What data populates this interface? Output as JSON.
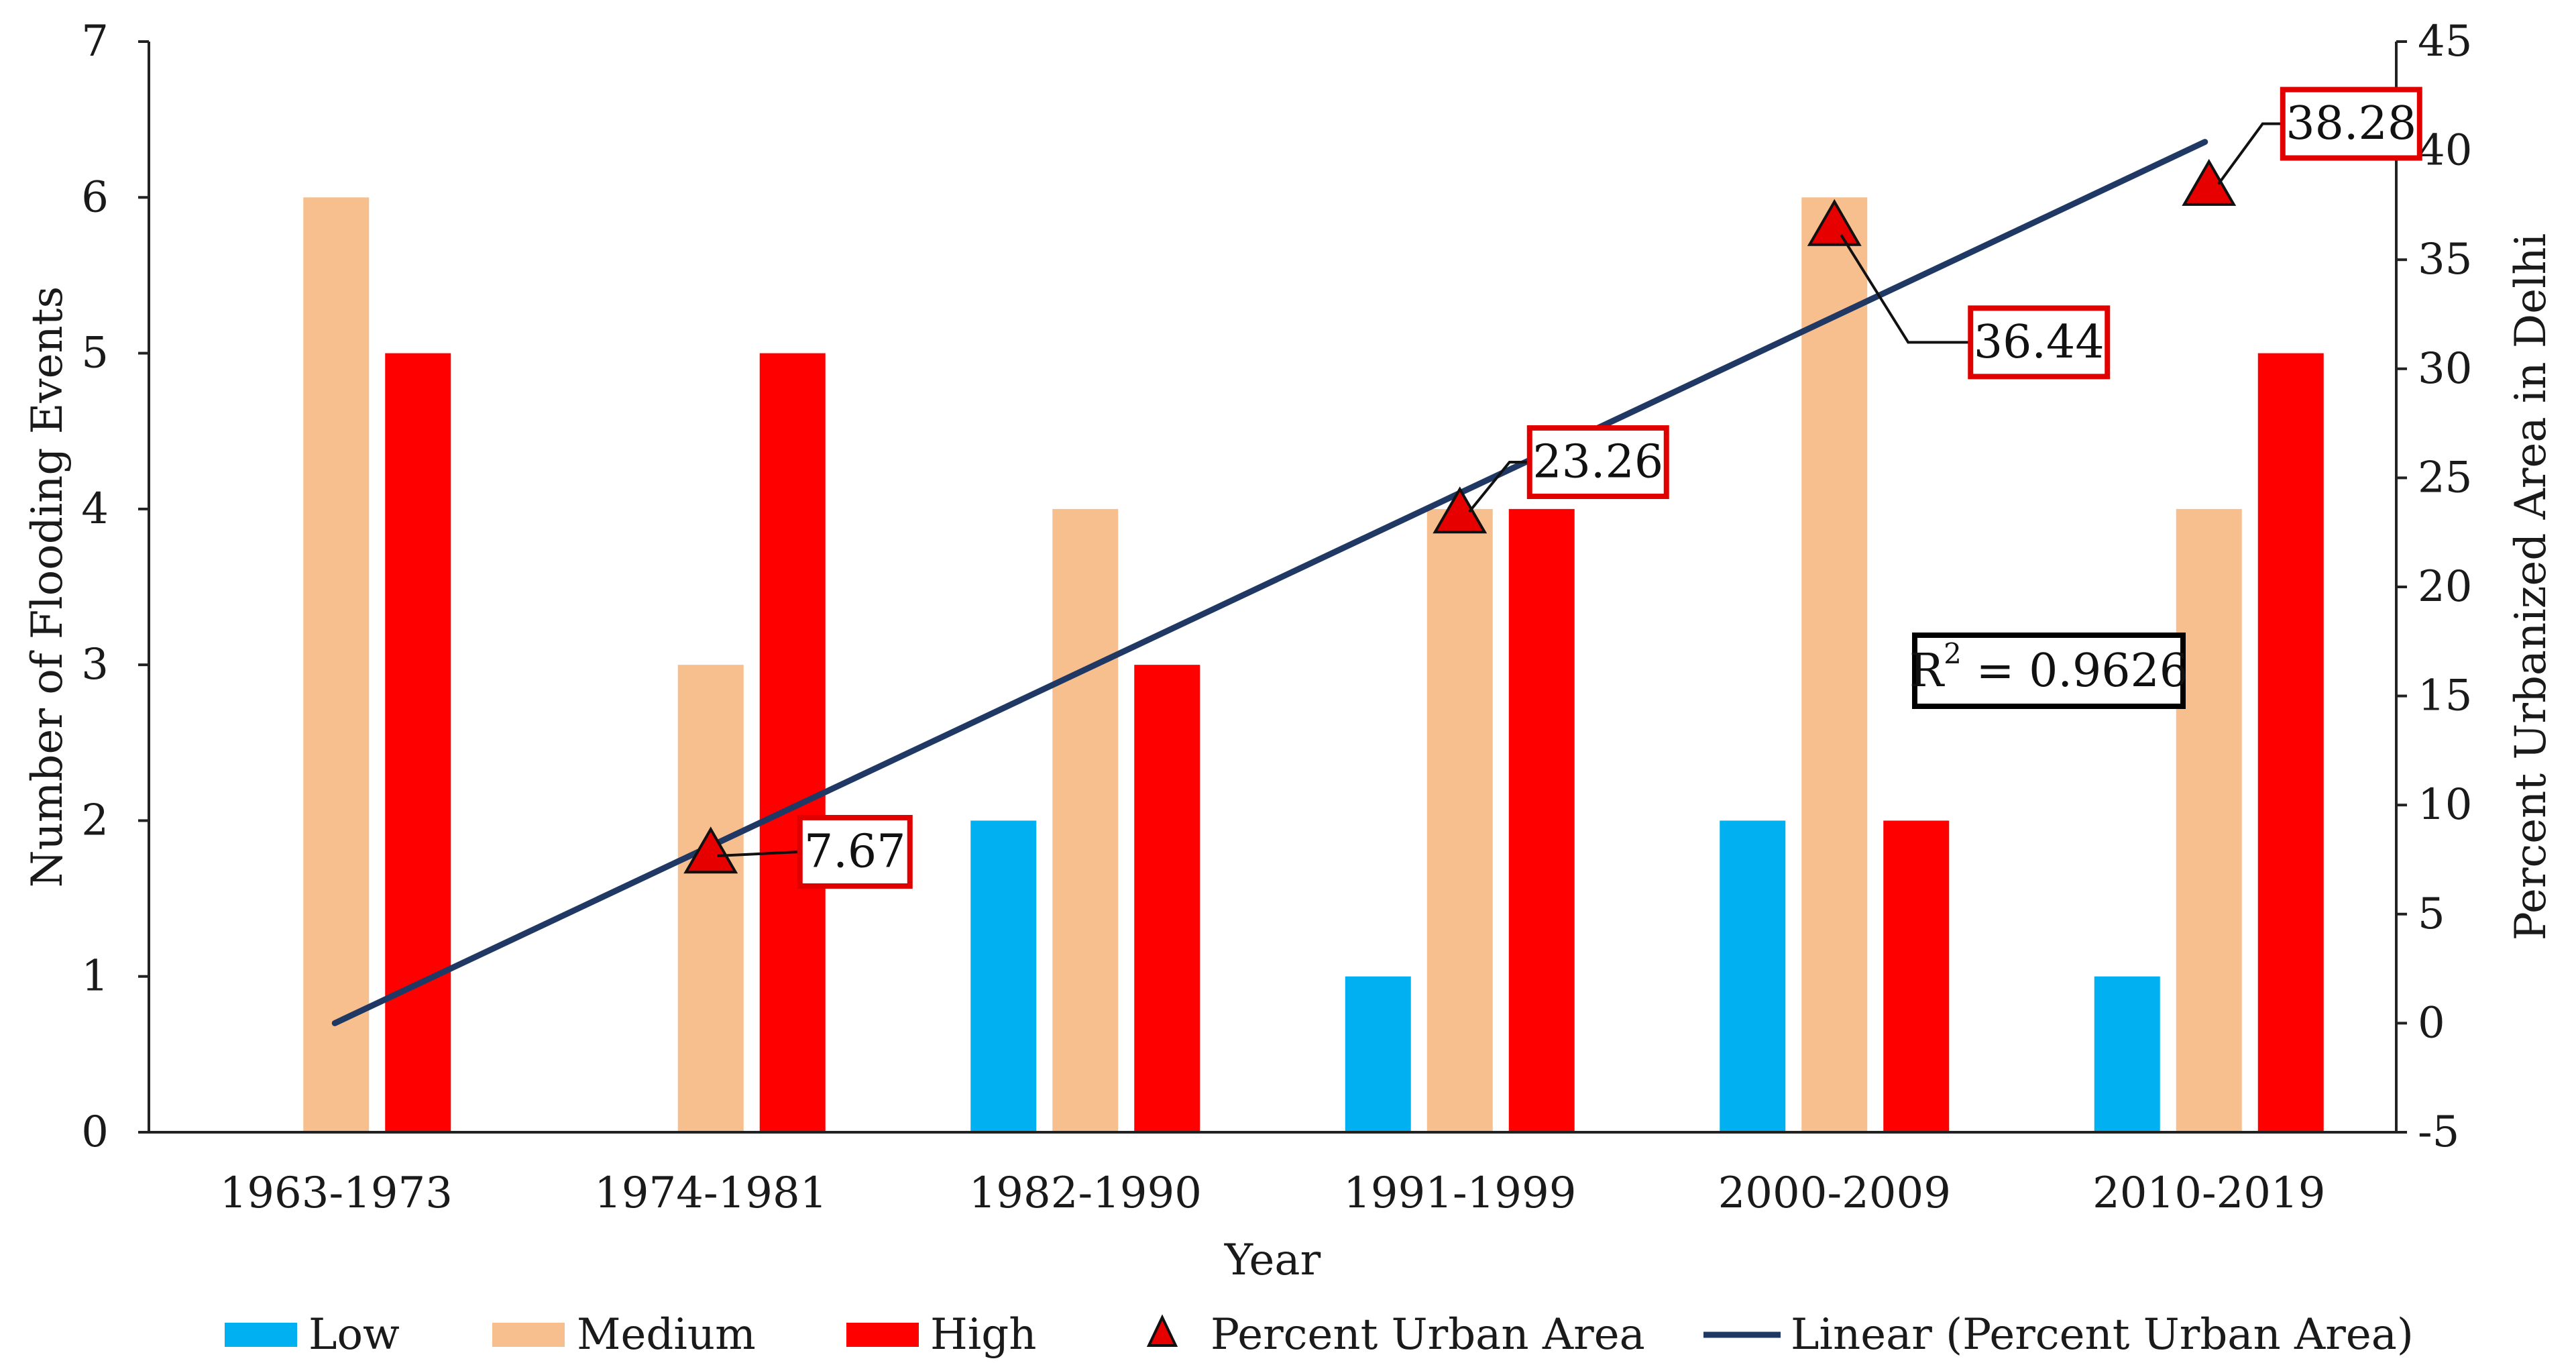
{
  "chart_data": {
    "type": "bar",
    "title": "",
    "xlabel": "Year",
    "ylabel": "Number of Flooding Events",
    "y2label": "Percent Urbanized Area in Delhi",
    "categories": [
      "1963-1973",
      "1974-1981",
      "1982-1990",
      "1991-1999",
      "2000-2009",
      "2010-2019"
    ],
    "ylim": [
      0,
      7
    ],
    "yticks": [
      "0",
      "1",
      "2",
      "3",
      "4",
      "5",
      "6",
      "7"
    ],
    "y2lim": [
      -5,
      45
    ],
    "y2ticks": [
      "-5",
      "0",
      "5",
      "10",
      "15",
      "20",
      "25",
      "30",
      "35",
      "40",
      "45"
    ],
    "series": [
      {
        "name": "Low",
        "color": "#00b0f0",
        "values": [
          0,
          0,
          2,
          1,
          2,
          1
        ]
      },
      {
        "name": "Medium",
        "color": "#f8bf8e",
        "values": [
          6,
          3,
          4,
          4,
          6,
          4
        ]
      },
      {
        "name": "High",
        "color": "#ff0000",
        "values": [
          5,
          5,
          3,
          4,
          2,
          5
        ]
      }
    ],
    "markers": {
      "name": "Percent Urban Area",
      "color": "#e60000",
      "axis": "secondary",
      "points": [
        {
          "category": "1974-1981",
          "value": 7.67,
          "label": "7.67"
        },
        {
          "category": "1991-1999",
          "value": 23.26,
          "label": "23.26"
        },
        {
          "category": "2000-2009",
          "value": 36.44,
          "label": "36.44"
        },
        {
          "category": "2010-2019",
          "value": 38.28,
          "label": "38.28"
        }
      ]
    },
    "trendline": {
      "name": "Linear (Percent Urban Area)",
      "color": "#1f3864",
      "axis": "secondary",
      "start": {
        "category": "1963-1973",
        "value": 0
      },
      "end": {
        "category": "2010-2019",
        "value": 40.4
      }
    },
    "r_squared": {
      "prefix": "R",
      "superscript": "2",
      "text": " = 0.9626"
    },
    "legend": {
      "position": "bottom",
      "items": [
        "Low",
        "Medium",
        "High",
        "Percent Urban Area",
        "Linear (Percent Urban Area)"
      ]
    }
  }
}
